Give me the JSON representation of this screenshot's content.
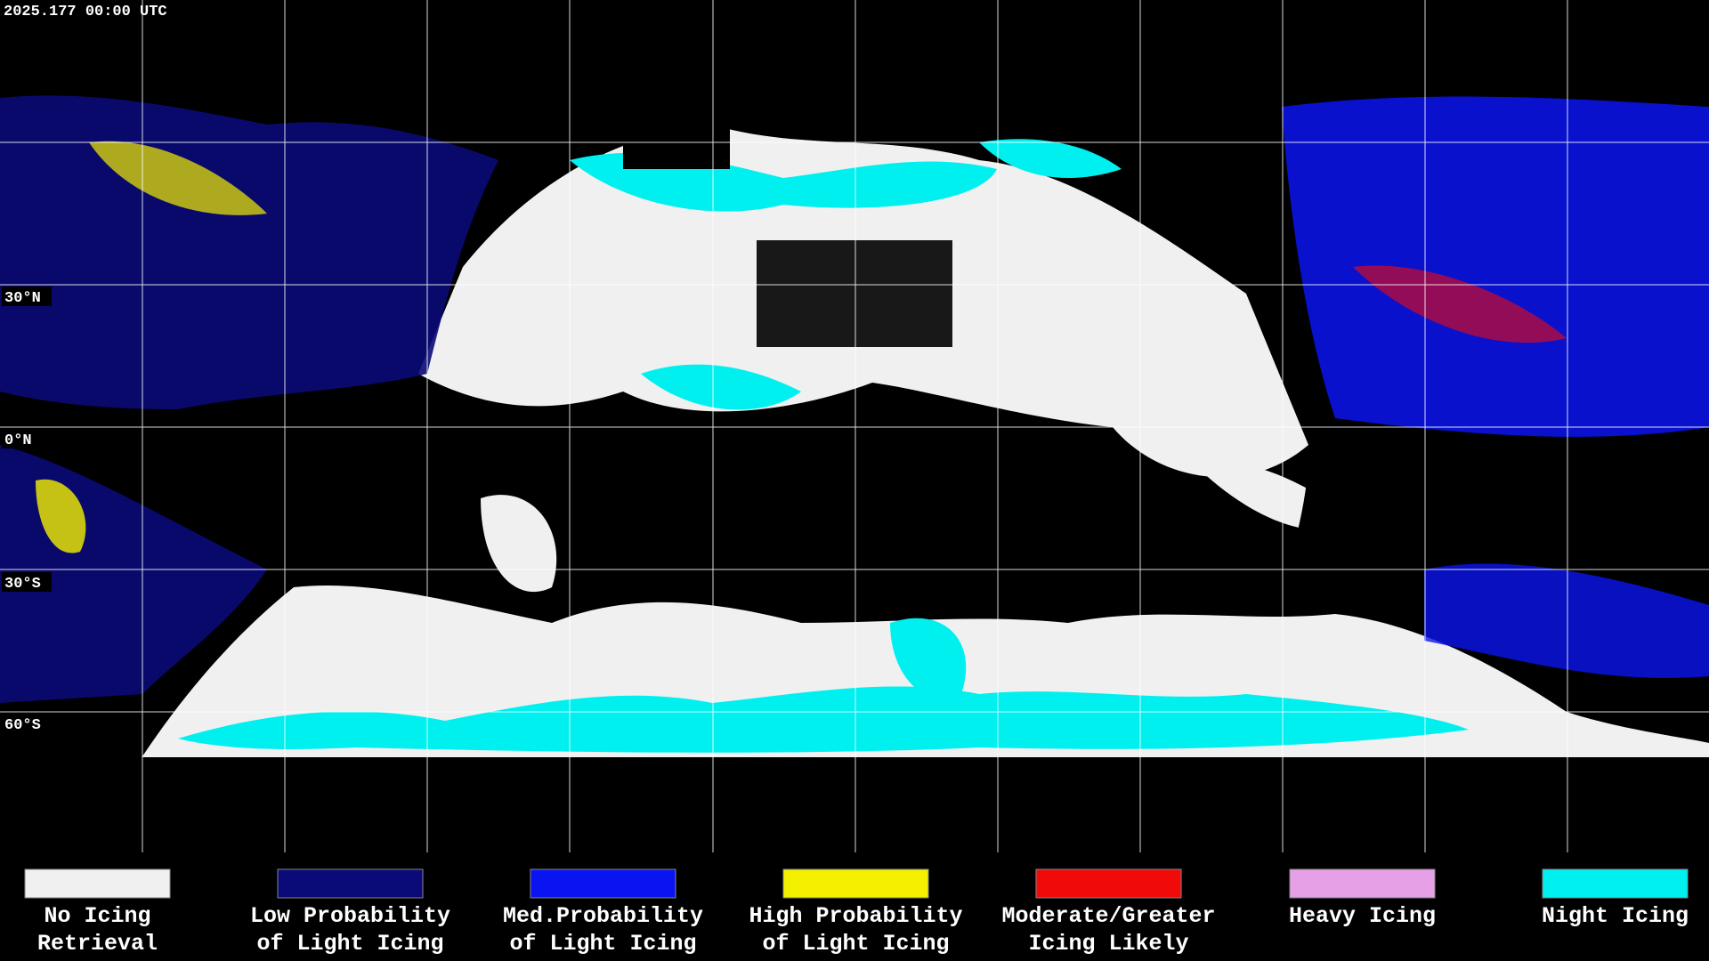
{
  "timestamp": "2025.177 00:00 UTC",
  "latitude_labels": [
    "30°N",
    "0°N",
    "30°S",
    "60°S"
  ],
  "legend": [
    {
      "label_lines": [
        "No Icing",
        "Retrieval"
      ],
      "color": "#f0f0f0"
    },
    {
      "label_lines": [
        "Low Probability",
        "of Light Icing"
      ],
      "color": "#0a0a78"
    },
    {
      "label_lines": [
        "Med.Probability",
        "of Light Icing"
      ],
      "color": "#0a14f0"
    },
    {
      "label_lines": [
        "High Probability",
        "of Light Icing"
      ],
      "color": "#f5f000"
    },
    {
      "label_lines": [
        "Moderate/Greater",
        "Icing Likely"
      ],
      "color": "#f00a0a"
    },
    {
      "label_lines": [
        "Heavy Icing"
      ],
      "color": "#e6a0e6"
    },
    {
      "label_lines": [
        "Night Icing"
      ],
      "color": "#00f0f0"
    }
  ]
}
